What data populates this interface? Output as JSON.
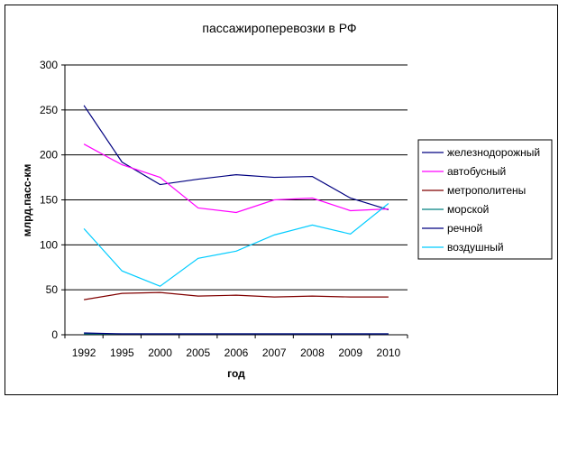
{
  "chart_data": {
    "type": "line",
    "title": "пассажироперевозки в РФ",
    "xlabel": "год",
    "ylabel": "млрд.пасс-км",
    "ylim": [
      0,
      300
    ],
    "yticks": [
      0,
      50,
      100,
      150,
      200,
      250,
      300
    ],
    "grid": true,
    "legend_position": "right",
    "categories": [
      "1992",
      "1995",
      "2000",
      "2005",
      "2006",
      "2007",
      "2008",
      "2009",
      "2010"
    ],
    "series": [
      {
        "name": "железнодорожный",
        "color": "#000080",
        "values": [
          255,
          192,
          167,
          173,
          178,
          175,
          176,
          152,
          139
        ]
      },
      {
        "name": "автобусный",
        "color": "#FF00FF",
        "values": [
          212,
          189,
          175,
          141,
          136,
          150,
          152,
          138,
          140
        ]
      },
      {
        "name": "метрополитены",
        "color": "#800000",
        "values": [
          39,
          46,
          47,
          43,
          44,
          42,
          43,
          42,
          42
        ]
      },
      {
        "name": "морской",
        "color": "#008080",
        "values": [
          1,
          1,
          1,
          1,
          1,
          1,
          1,
          1,
          1
        ]
      },
      {
        "name": "речной",
        "color": "#000080",
        "values": [
          2,
          1,
          1,
          1,
          1,
          1,
          1,
          1,
          1
        ]
      },
      {
        "name": "воздушный",
        "color": "#00CCFF",
        "values": [
          118,
          71,
          54,
          85,
          93,
          111,
          122,
          112,
          146
        ]
      }
    ]
  }
}
